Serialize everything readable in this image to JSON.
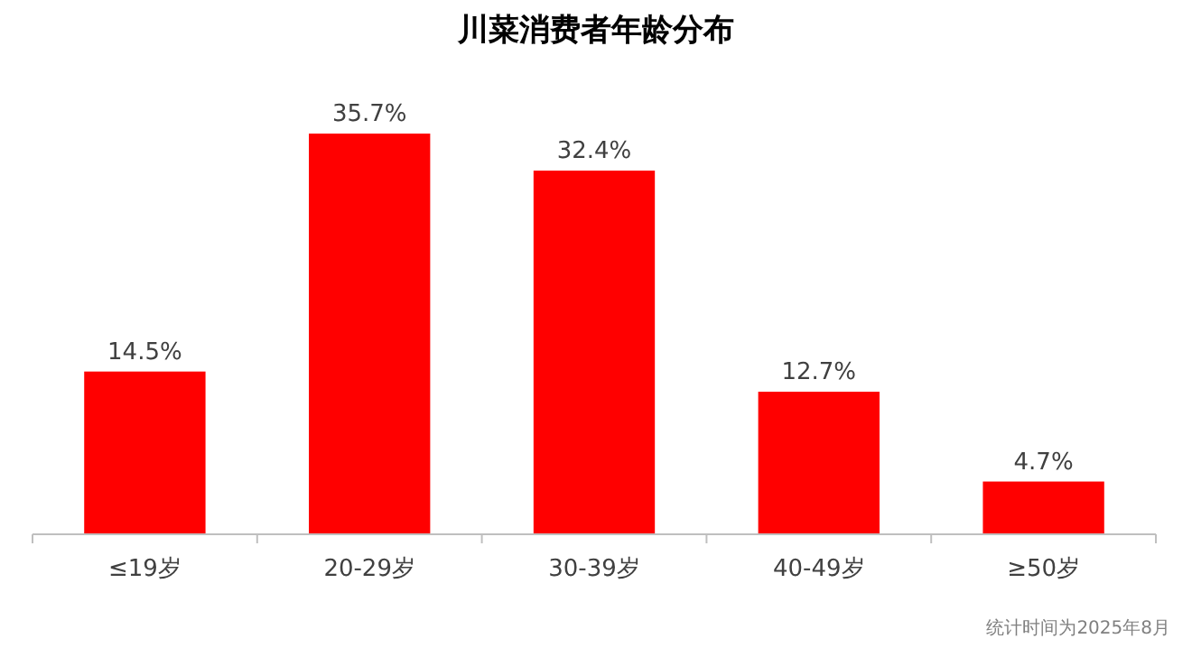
{
  "chart_data": {
    "type": "bar",
    "title": "川菜消费者年龄分布",
    "categories": [
      "≤19岁",
      "20-29岁",
      "30-39岁",
      "40-49岁",
      "≥50岁"
    ],
    "values": [
      14.5,
      35.7,
      32.4,
      12.7,
      4.7
    ],
    "value_labels": [
      "14.5%",
      "35.7%",
      "32.4%",
      "12.7%",
      "4.7%"
    ],
    "color": "#ff0000",
    "grid": false,
    "annotations": [
      "统计时间为2025年8月"
    ]
  }
}
